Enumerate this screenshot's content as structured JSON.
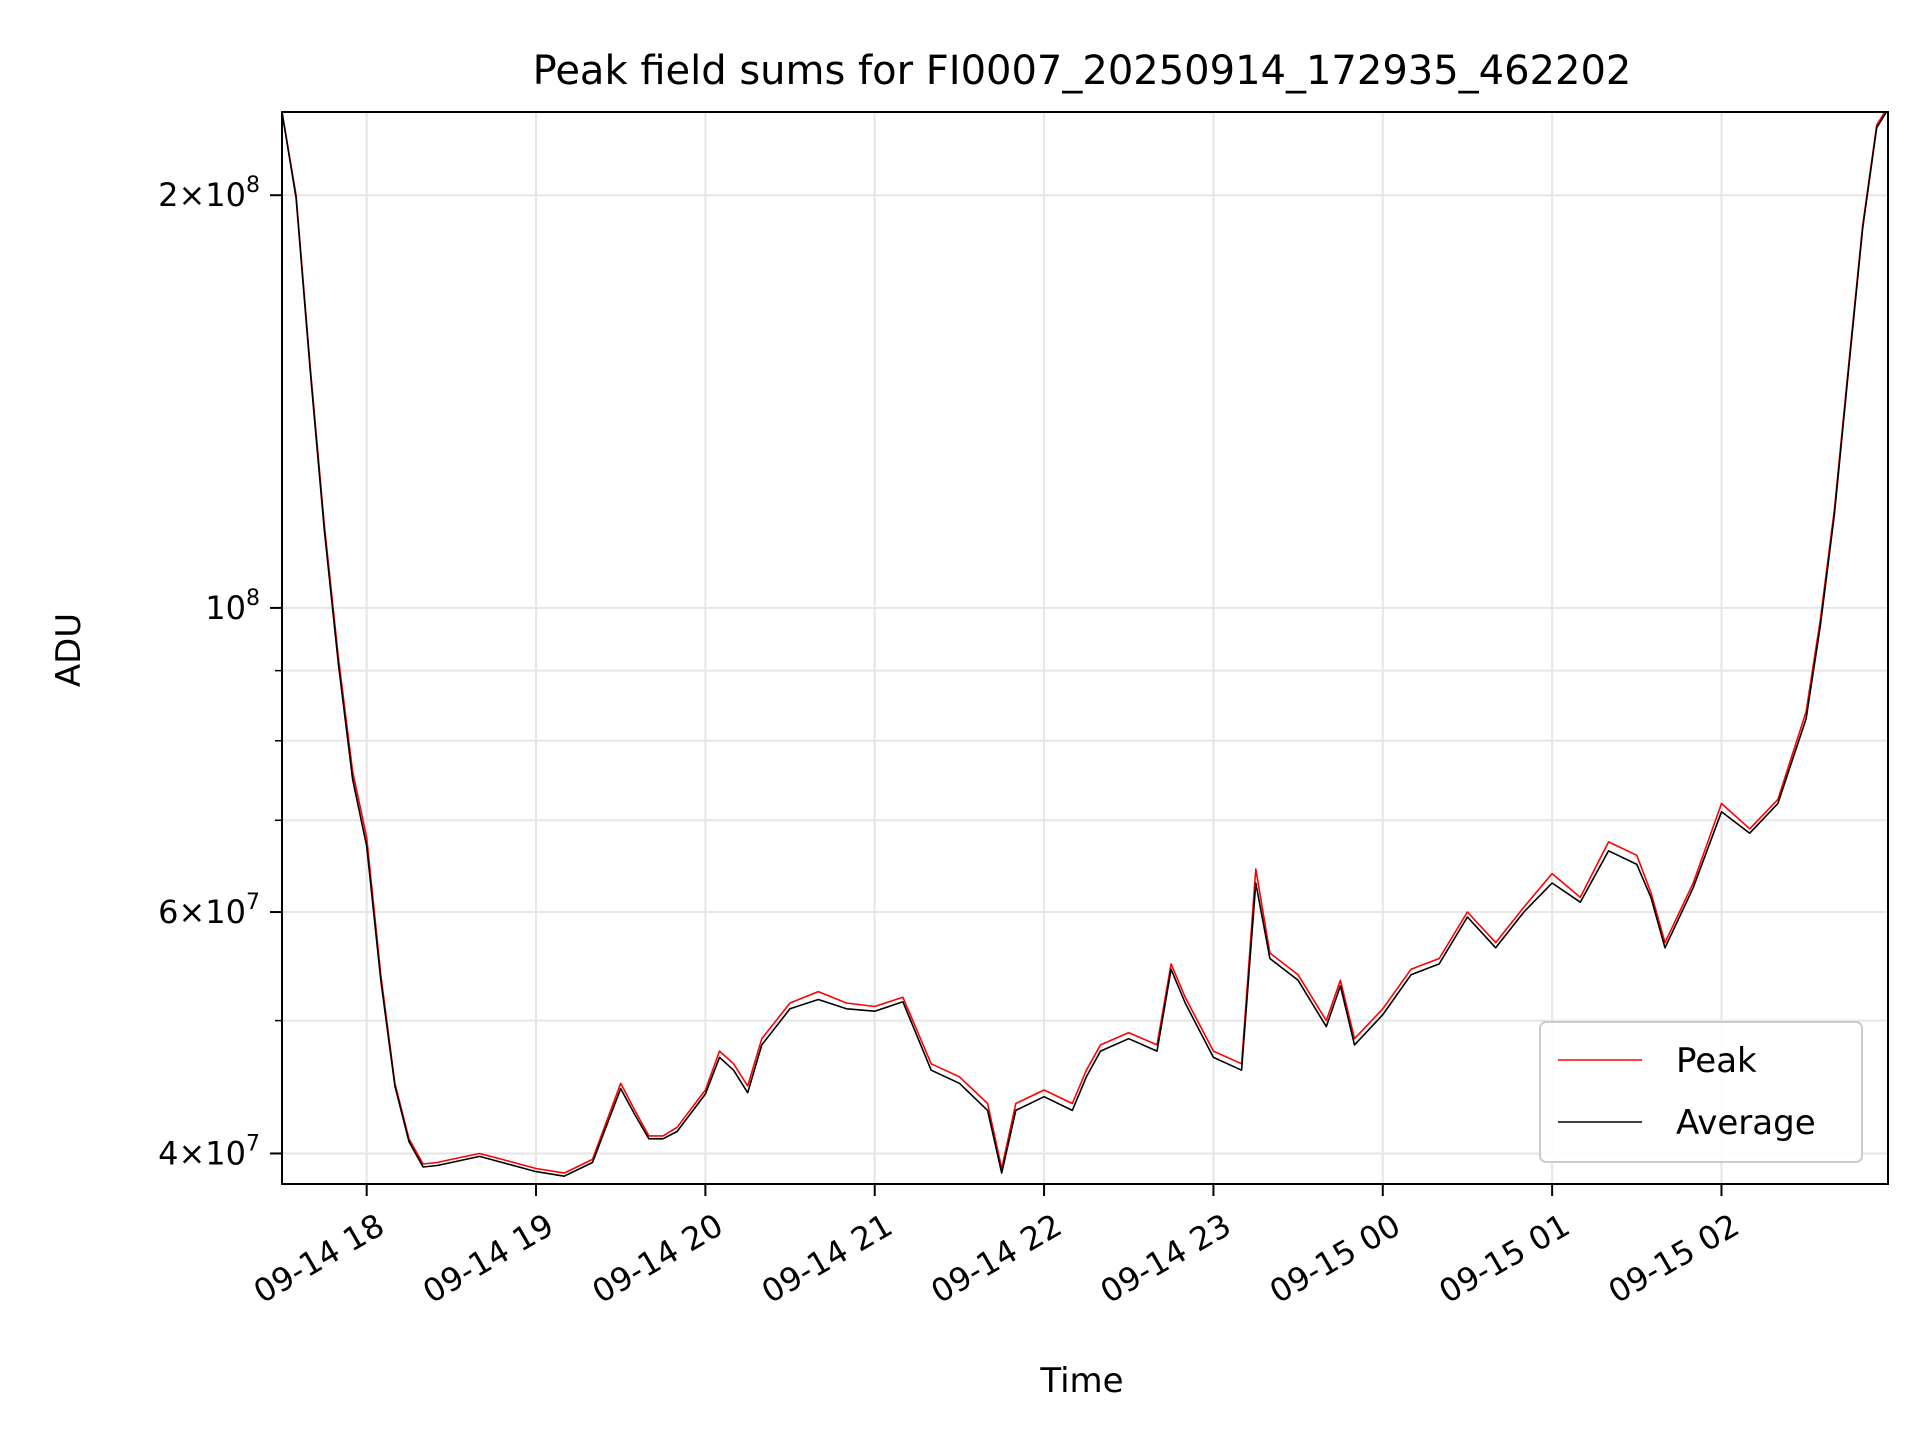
{
  "chart_data": {
    "type": "line",
    "title": "Peak field sums for FI0007_20250914_172935_462202",
    "xlabel": "Time",
    "ylabel": "ADU",
    "y_scale": "log",
    "ylim": [
      38000000,
      230000000
    ],
    "xlim": [
      "2025-09-14T17:30",
      "2025-09-15T02:59"
    ],
    "grid": true,
    "legend": "lower right",
    "x_ticks": [
      "09-14 18",
      "09-14 19",
      "09-14 20",
      "09-14 21",
      "09-14 22",
      "09-14 23",
      "09-15 00",
      "09-15 01",
      "09-15 02"
    ],
    "x_tick_times": [
      "2025-09-14T18:00",
      "2025-09-14T19:00",
      "2025-09-14T20:00",
      "2025-09-14T21:00",
      "2025-09-14T22:00",
      "2025-09-14T23:00",
      "2025-09-15T00:00",
      "2025-09-15T01:00",
      "2025-09-15T02:00"
    ],
    "y_ticks": [
      {
        "mantissa": "4",
        "exp": "7",
        "value": 40000000
      },
      {
        "mantissa": "6",
        "exp": "7",
        "value": 60000000
      },
      {
        "mantissa": "",
        "exp": "8",
        "value": 100000000
      },
      {
        "mantissa": "2",
        "exp": "8",
        "value": 200000000
      }
    ],
    "minor_y_ticks": [
      50000000,
      70000000,
      80000000,
      90000000
    ],
    "x": [
      "2025-09-14T17:30",
      "2025-09-14T17:35",
      "2025-09-14T17:40",
      "2025-09-14T17:45",
      "2025-09-14T17:50",
      "2025-09-14T17:55",
      "2025-09-14T18:00",
      "2025-09-14T18:05",
      "2025-09-14T18:10",
      "2025-09-14T18:15",
      "2025-09-14T18:20",
      "2025-09-14T18:25",
      "2025-09-14T18:30",
      "2025-09-14T18:40",
      "2025-09-14T18:50",
      "2025-09-14T19:00",
      "2025-09-14T19:10",
      "2025-09-14T19:20",
      "2025-09-14T19:30",
      "2025-09-14T19:35",
      "2025-09-14T19:40",
      "2025-09-14T19:45",
      "2025-09-14T19:50",
      "2025-09-14T20:00",
      "2025-09-14T20:05",
      "2025-09-14T20:10",
      "2025-09-14T20:15",
      "2025-09-14T20:20",
      "2025-09-14T20:30",
      "2025-09-14T20:40",
      "2025-09-14T20:50",
      "2025-09-14T21:00",
      "2025-09-14T21:10",
      "2025-09-14T21:20",
      "2025-09-14T21:30",
      "2025-09-14T21:40",
      "2025-09-14T21:45",
      "2025-09-14T21:50",
      "2025-09-14T22:00",
      "2025-09-14T22:10",
      "2025-09-14T22:15",
      "2025-09-14T22:20",
      "2025-09-14T22:30",
      "2025-09-14T22:40",
      "2025-09-14T22:45",
      "2025-09-14T22:50",
      "2025-09-14T23:00",
      "2025-09-14T23:10",
      "2025-09-14T23:15",
      "2025-09-14T23:20",
      "2025-09-14T23:30",
      "2025-09-14T23:40",
      "2025-09-14T23:45",
      "2025-09-14T23:50",
      "2025-09-15T00:00",
      "2025-09-15T00:10",
      "2025-09-15T00:20",
      "2025-09-15T00:30",
      "2025-09-15T00:40",
      "2025-09-15T00:50",
      "2025-09-15T01:00",
      "2025-09-15T01:10",
      "2025-09-15T01:20",
      "2025-09-15T01:30",
      "2025-09-15T01:35",
      "2025-09-15T01:40",
      "2025-09-15T01:50",
      "2025-09-15T02:00",
      "2025-09-15T02:10",
      "2025-09-15T02:20",
      "2025-09-15T02:30",
      "2025-09-15T02:35",
      "2025-09-15T02:40",
      "2025-09-15T02:45",
      "2025-09-15T02:50",
      "2025-09-15T02:55",
      "2025-09-15T02:59"
    ],
    "series": [
      {
        "name": "Peak",
        "color": "#ff0000",
        "values": [
          230000000,
          200000000,
          150000000,
          115000000,
          92000000,
          76000000,
          68000000,
          54000000,
          45000000,
          41000000,
          39300000,
          39400000,
          39600000,
          40000000,
          39500000,
          39000000,
          38700000,
          39600000,
          45000000,
          43000000,
          41200000,
          41200000,
          41800000,
          44500000,
          47500000,
          46500000,
          44800000,
          48500000,
          51500000,
          52500000,
          51500000,
          51200000,
          52000000,
          46500000,
          45500000,
          43500000,
          39000000,
          43500000,
          44500000,
          43500000,
          46000000,
          48000000,
          49000000,
          48000000,
          55000000,
          52000000,
          47500000,
          46500000,
          64500000,
          56000000,
          54000000,
          50000000,
          53500000,
          48500000,
          51000000,
          54500000,
          55500000,
          60000000,
          57000000,
          60500000,
          64000000,
          61500000,
          67500000,
          66000000,
          62000000,
          57000000,
          63000000,
          72000000,
          69000000,
          72500000,
          84000000,
          98000000,
          118000000,
          150000000,
          190000000,
          225000000,
          232000000
        ]
      },
      {
        "name": "Average",
        "color": "#000000",
        "values": [
          230000000,
          199000000,
          149000000,
          114000000,
          91000000,
          75000000,
          67000000,
          53500000,
          44800000,
          40800000,
          39100000,
          39200000,
          39400000,
          39800000,
          39300000,
          38800000,
          38500000,
          39400000,
          44600000,
          42700000,
          41000000,
          41000000,
          41500000,
          44200000,
          47000000,
          46000000,
          44300000,
          48000000,
          51000000,
          51800000,
          51000000,
          50800000,
          51600000,
          46000000,
          45000000,
          43000000,
          38700000,
          43000000,
          44000000,
          43000000,
          45500000,
          47500000,
          48500000,
          47500000,
          54500000,
          51500000,
          47000000,
          46000000,
          63000000,
          55500000,
          53500000,
          49500000,
          53000000,
          48000000,
          50500000,
          54000000,
          55000000,
          59500000,
          56500000,
          60000000,
          63000000,
          61000000,
          66500000,
          65000000,
          61500000,
          56500000,
          62500000,
          71000000,
          68500000,
          72000000,
          83000000,
          97000000,
          117000000,
          149000000,
          189000000,
          224000000,
          231000000
        ]
      }
    ],
    "legend_entries": [
      "Peak",
      "Average"
    ]
  }
}
